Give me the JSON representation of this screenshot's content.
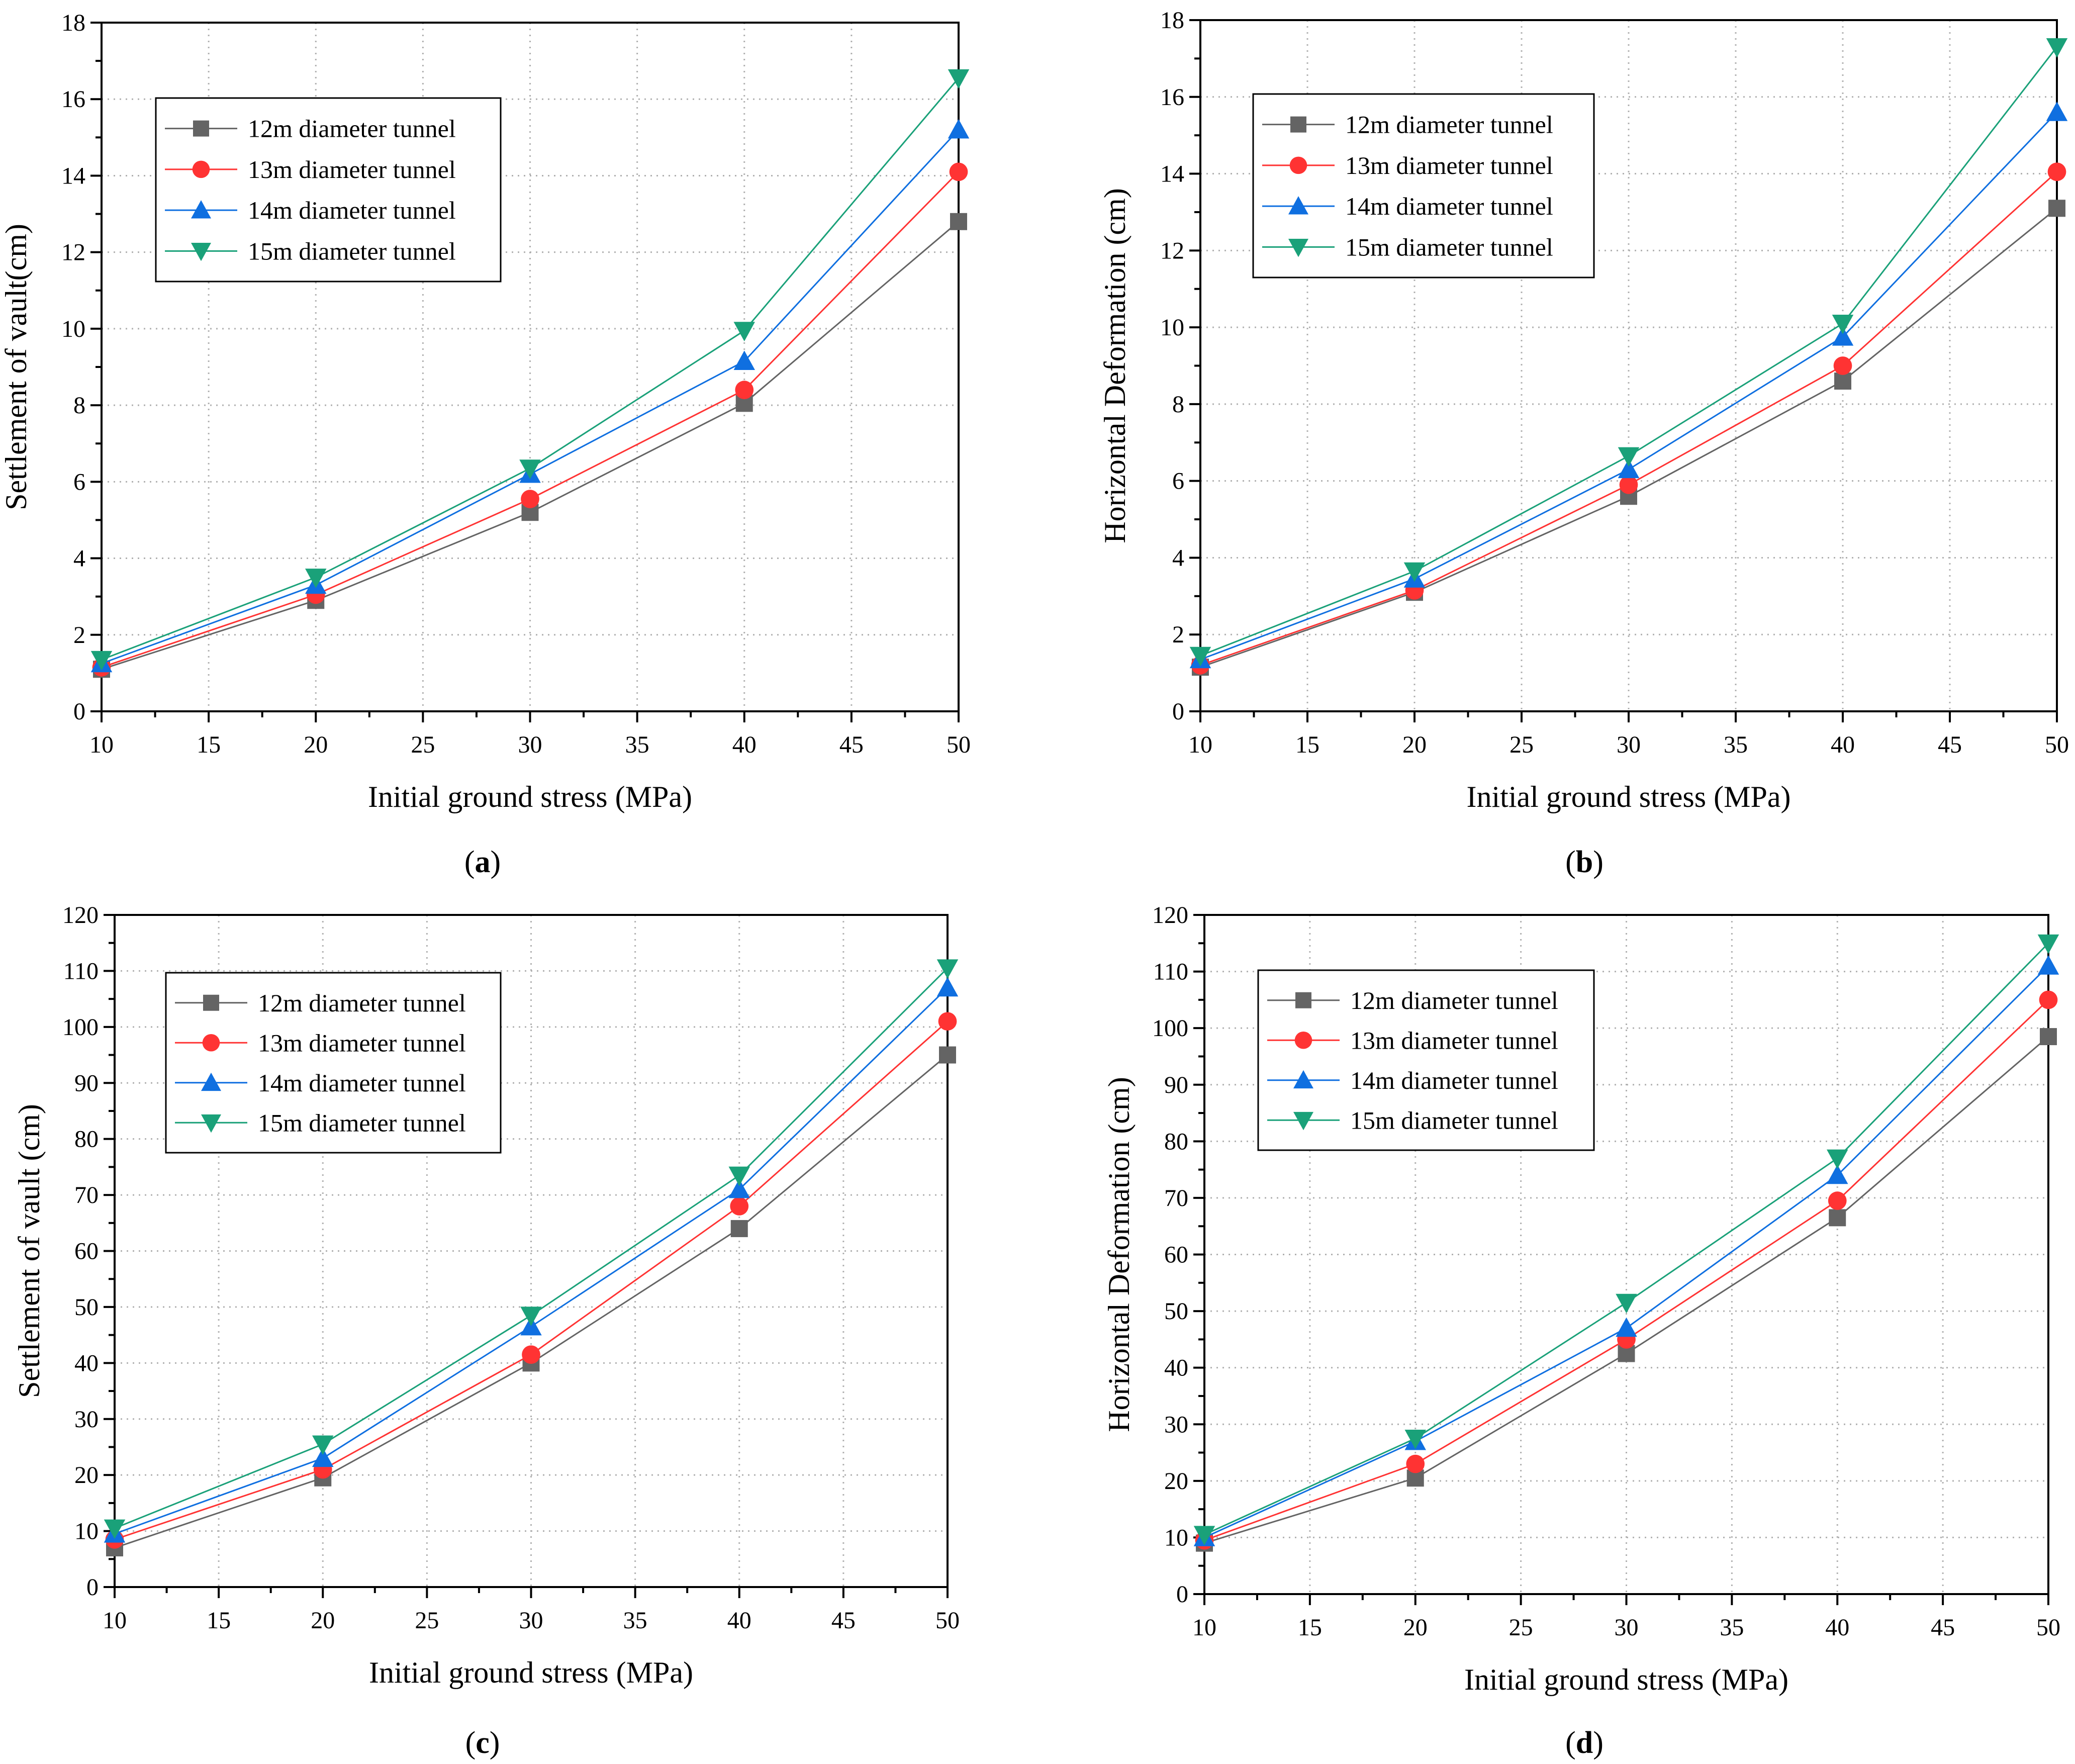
{
  "chart_data": [
    {
      "type": "line",
      "panel": "a",
      "caption_letter": "a",
      "xlabel": "Initial ground stress (MPa)",
      "ylabel": "Settlement of vault(cm)",
      "xlim": [
        10,
        50
      ],
      "ylim": [
        0,
        18
      ],
      "xticks": [
        "10",
        "15",
        "20",
        "25",
        "30",
        "35",
        "40",
        "45",
        "50"
      ],
      "yticks": [
        "0",
        "2",
        "4",
        "6",
        "8",
        "10",
        "12",
        "14",
        "16",
        "18"
      ],
      "grid": true,
      "legend_position": "top-left",
      "x": [
        10,
        20,
        30,
        40,
        50
      ],
      "series": [
        {
          "name": "12m diameter tunnel",
          "color": "#646464",
          "marker": "square",
          "values": [
            1.1,
            2.9,
            5.2,
            8.05,
            12.8
          ]
        },
        {
          "name": "13m diameter tunnel",
          "color": "#ff3333",
          "marker": "circle",
          "values": [
            1.15,
            3.05,
            5.55,
            8.4,
            14.1
          ]
        },
        {
          "name": "14m diameter tunnel",
          "color": "#0f6fe0",
          "marker": "triangle-up",
          "values": [
            1.25,
            3.3,
            6.2,
            9.15,
            15.2
          ]
        },
        {
          "name": "15m diameter tunnel",
          "color": "#1aa179",
          "marker": "triangle-down",
          "values": [
            1.35,
            3.5,
            6.35,
            9.95,
            16.55
          ]
        }
      ]
    },
    {
      "type": "line",
      "panel": "b",
      "caption_letter": "b",
      "xlabel": "Initial ground stress (MPa)",
      "ylabel": "Horizontal Deformation (cm)",
      "xlim": [
        10,
        50
      ],
      "ylim": [
        0,
        18
      ],
      "xticks": [
        "10",
        "15",
        "20",
        "25",
        "30",
        "35",
        "40",
        "45",
        "50"
      ],
      "yticks": [
        "0",
        "2",
        "4",
        "6",
        "8",
        "10",
        "12",
        "14",
        "16",
        "18"
      ],
      "grid": true,
      "legend_position": "top-left",
      "x": [
        10,
        20,
        30,
        40,
        50
      ],
      "series": [
        {
          "name": "12m diameter tunnel",
          "color": "#646464",
          "marker": "square",
          "values": [
            1.15,
            3.1,
            5.6,
            8.6,
            13.1
          ]
        },
        {
          "name": "13m diameter tunnel",
          "color": "#ff3333",
          "marker": "circle",
          "values": [
            1.2,
            3.15,
            5.9,
            9.0,
            14.05
          ]
        },
        {
          "name": "14m diameter tunnel",
          "color": "#0f6fe0",
          "marker": "triangle-up",
          "values": [
            1.35,
            3.45,
            6.3,
            9.75,
            15.6
          ]
        },
        {
          "name": "15m diameter tunnel",
          "color": "#1aa179",
          "marker": "triangle-down",
          "values": [
            1.45,
            3.65,
            6.65,
            10.1,
            17.3
          ]
        }
      ]
    },
    {
      "type": "line",
      "panel": "c",
      "caption_letter": "c",
      "xlabel": "Initial ground stress (MPa)",
      "ylabel": "Settlement of vault (cm)",
      "xlim": [
        10,
        50
      ],
      "ylim": [
        0,
        120
      ],
      "xticks": [
        "10",
        "15",
        "20",
        "25",
        "30",
        "35",
        "40",
        "45",
        "50"
      ],
      "yticks": [
        "0",
        "10",
        "20",
        "30",
        "40",
        "50",
        "60",
        "70",
        "80",
        "90",
        "100",
        "110",
        "120"
      ],
      "grid": true,
      "legend_position": "top-left",
      "x": [
        10,
        20,
        30,
        40,
        50
      ],
      "series": [
        {
          "name": "12m diameter tunnel",
          "color": "#646464",
          "marker": "square",
          "values": [
            7.0,
            19.5,
            40.0,
            64.0,
            95.0
          ]
        },
        {
          "name": "13m diameter tunnel",
          "color": "#ff3333",
          "marker": "circle",
          "values": [
            8.5,
            21.0,
            41.5,
            68.0,
            101.0
          ]
        },
        {
          "name": "14m diameter tunnel",
          "color": "#0f6fe0",
          "marker": "triangle-up",
          "values": [
            9.5,
            23.0,
            46.5,
            71.0,
            107.0
          ]
        },
        {
          "name": "15m diameter tunnel",
          "color": "#1aa179",
          "marker": "triangle-down",
          "values": [
            10.5,
            25.5,
            48.5,
            73.5,
            110.5
          ]
        }
      ]
    },
    {
      "type": "line",
      "panel": "d",
      "caption_letter": "d",
      "xlabel": "Initial ground stress (MPa)",
      "ylabel": "Horizontal Deformation (cm)",
      "xlim": [
        10,
        50
      ],
      "ylim": [
        0,
        120
      ],
      "xticks": [
        "10",
        "15",
        "20",
        "25",
        "30",
        "35",
        "40",
        "45",
        "50"
      ],
      "yticks": [
        "0",
        "10",
        "20",
        "30",
        "40",
        "50",
        "60",
        "70",
        "80",
        "90",
        "100",
        "110",
        "120"
      ],
      "grid": true,
      "legend_position": "top-left",
      "x": [
        10,
        20,
        30,
        40,
        50
      ],
      "series": [
        {
          "name": "12m diameter tunnel",
          "color": "#646464",
          "marker": "square",
          "values": [
            9.0,
            20.5,
            42.5,
            66.5,
            98.5
          ]
        },
        {
          "name": "13m diameter tunnel",
          "color": "#ff3333",
          "marker": "circle",
          "values": [
            9.5,
            23.0,
            45.0,
            69.5,
            105.0
          ]
        },
        {
          "name": "14m diameter tunnel",
          "color": "#0f6fe0",
          "marker": "triangle-up",
          "values": [
            10.0,
            27.0,
            47.0,
            74.0,
            111.0
          ]
        },
        {
          "name": "15m diameter tunnel",
          "color": "#1aa179",
          "marker": "triangle-down",
          "values": [
            10.5,
            27.5,
            51.5,
            77.0,
            115.0
          ]
        }
      ]
    }
  ]
}
